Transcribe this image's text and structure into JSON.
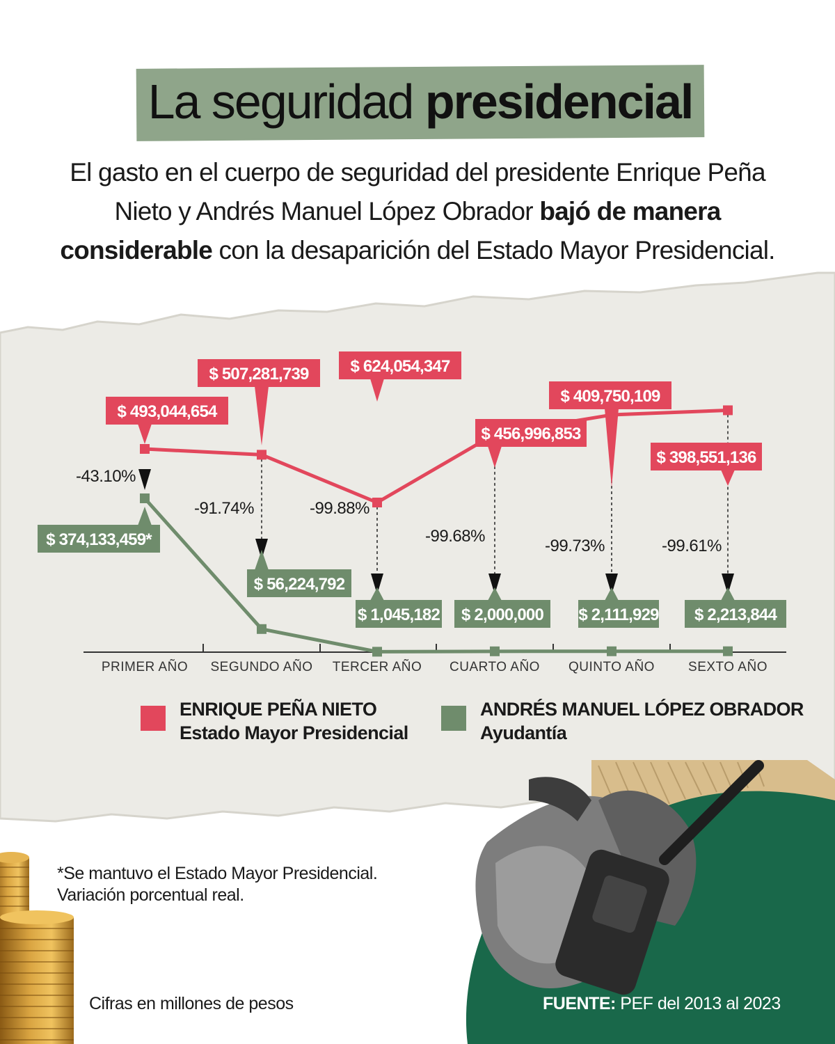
{
  "header": {
    "title_regular": "La seguridad",
    "title_bold": "presidencial",
    "subtitle_part1": "El gasto en el cuerpo de seguridad del presidente Enrique Peña Nieto y Andrés Manuel López Obrador",
    "subtitle_bold": "bajó de manera considerable",
    "subtitle_part2": "con la desaparición del Estado Mayor Presidencial."
  },
  "colors": {
    "red": "#e2475c",
    "green": "#6f8c6c",
    "title_band": "#8fa58a",
    "dark_green": "#19684a"
  },
  "chart_data": {
    "type": "line",
    "categories": [
      "PRIMER AÑO",
      "SEGUNDO AÑO",
      "TERCER AÑO",
      "CUARTO AÑO",
      "QUINTO AÑO",
      "SEXTO AÑO"
    ],
    "series": [
      {
        "name": "ENRIQUE PEÑA NIETO",
        "subname": "Estado Mayor Presidencial",
        "color": "#e2475c",
        "values": [
          493044654,
          507281739,
          624054347,
          456996853,
          409750109,
          398551136
        ],
        "labels": [
          "$ 493,044,654",
          "$ 507,281,739",
          "$ 624,054,347",
          "$ 456,996,853",
          "$ 409,750,109",
          "$ 398,551,136"
        ]
      },
      {
        "name": "ANDRÉS MANUEL LÓPEZ OBRADOR",
        "subname": "Ayudantía",
        "color": "#6f8c6c",
        "values": [
          374133459,
          56224792,
          1045182,
          2000000,
          2111929,
          2213844
        ],
        "labels": [
          "$ 374,133,459*",
          "$ 56,224,792",
          "$ 1,045,182",
          "$ 2,000,000",
          "$ 2,111,929",
          "$ 2,213,844"
        ]
      }
    ],
    "variations": [
      "-43.10%",
      "-91.74%",
      "-99.88%",
      "-99.68%",
      "-99.73%",
      "-99.61%"
    ]
  },
  "footnotes": {
    "note_line1": "*Se mantuvo el Estado Mayor Presidencial.",
    "note_line2": "Variación porcentual real.",
    "units": "Cifras en millones de pesos",
    "source_label": "FUENTE:",
    "source_text": "PEF del 2013 al 2023"
  }
}
